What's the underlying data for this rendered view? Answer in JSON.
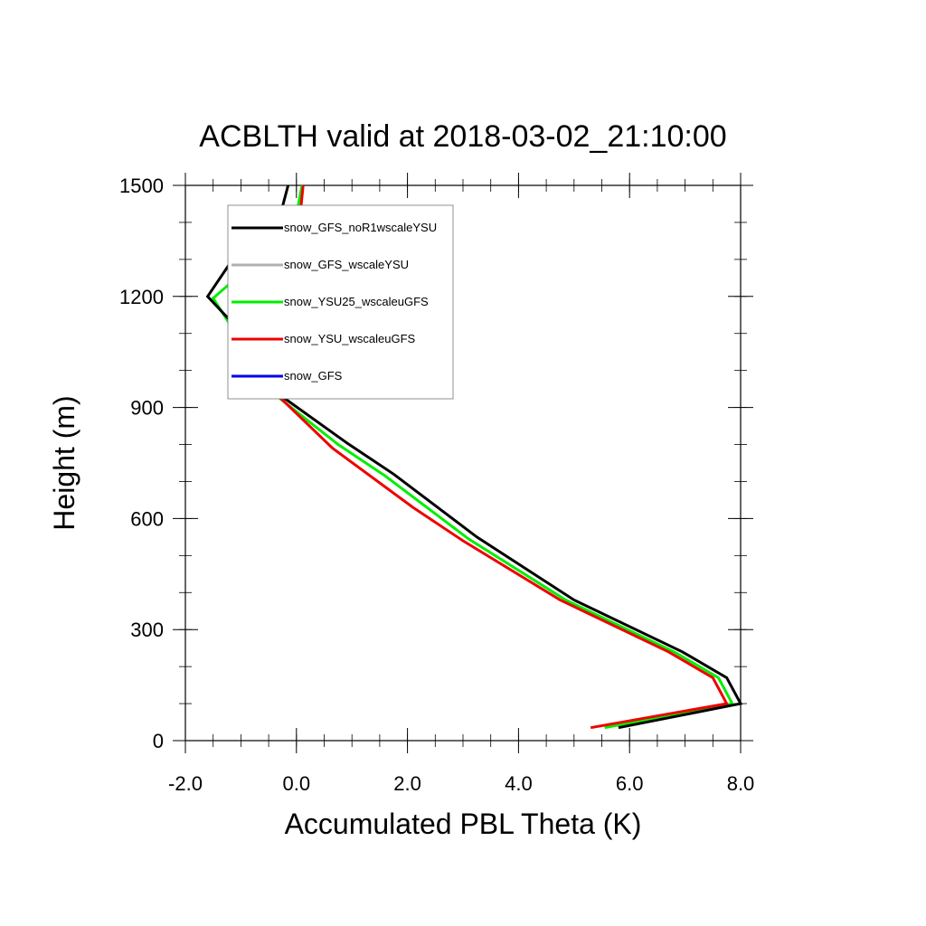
{
  "chart_data": {
    "type": "line",
    "title": "ACBLTH valid at 2018-03-02_21:10:00",
    "xlabel": "Accumulated PBL Theta (K)",
    "ylabel": "Height (m)",
    "xlim": [
      -2.0,
      8.0
    ],
    "ylim": [
      0,
      1500
    ],
    "xticks": [
      {
        "value": -2.0,
        "label": "-2.0"
      },
      {
        "value": 0.0,
        "label": "0.0"
      },
      {
        "value": 2.0,
        "label": "2.0"
      },
      {
        "value": 4.0,
        "label": "4.0"
      },
      {
        "value": 6.0,
        "label": "6.0"
      },
      {
        "value": 8.0,
        "label": "8.0"
      }
    ],
    "yticks": [
      {
        "value": 0,
        "label": "0"
      },
      {
        "value": 300,
        "label": "300"
      },
      {
        "value": 600,
        "label": "600"
      },
      {
        "value": 900,
        "label": "900"
      },
      {
        "value": 1200,
        "label": "1200"
      },
      {
        "value": 1500,
        "label": "1500"
      }
    ],
    "legend_position": "top-left",
    "series": [
      {
        "name": "snow_GFS_noR1wscaleYSU",
        "color": "#000000",
        "x": [
          5.8,
          8.0,
          7.75,
          6.95,
          5.0,
          3.25,
          1.75,
          0.9,
          -0.45,
          -0.85,
          -1.6,
          -1.15,
          -0.3,
          -0.15
        ],
        "y": [
          35,
          100,
          170,
          240,
          380,
          550,
          720,
          805,
          950,
          1080,
          1200,
          1300,
          1415,
          1500
        ]
      },
      {
        "name": "snow_GFS_wscaleYSU",
        "color": "#b0b0b0",
        "x": [],
        "y": []
      },
      {
        "name": "snow_YSU25_wscaleuGFS",
        "color": "#00ee00",
        "x": [
          5.55,
          7.85,
          7.6,
          6.8,
          4.85,
          3.1,
          1.6,
          0.75,
          -0.6,
          -1.05,
          -1.5,
          -0.7,
          0.0,
          0.1
        ],
        "y": [
          35,
          100,
          170,
          240,
          380,
          545,
          715,
          800,
          960,
          1090,
          1195,
          1300,
          1420,
          1500
        ]
      },
      {
        "name": "snow_YSU_wscaleuGFS",
        "color": "#ee0000",
        "x": [
          5.3,
          7.75,
          7.5,
          6.7,
          4.75,
          3.0,
          2.1,
          0.65,
          -0.7,
          -0.9,
          -1.15,
          -0.2,
          0.05,
          0.12
        ],
        "y": [
          35,
          100,
          170,
          240,
          380,
          540,
          630,
          790,
          985,
          1025,
          1085,
          1185,
          1395,
          1500
        ]
      },
      {
        "name": "snow_GFS",
        "color": "#0000ee",
        "x": [],
        "y": []
      }
    ]
  }
}
